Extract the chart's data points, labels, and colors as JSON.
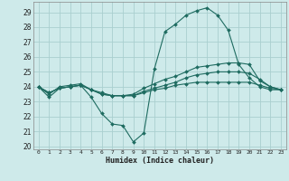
{
  "xlabel": "Humidex (Indice chaleur)",
  "x_ticks": [
    0,
    1,
    2,
    3,
    4,
    5,
    6,
    7,
    8,
    9,
    10,
    11,
    12,
    13,
    14,
    15,
    16,
    17,
    18,
    19,
    20,
    21,
    22,
    23
  ],
  "xlim": [
    -0.5,
    23.5
  ],
  "ylim": [
    19.8,
    29.7
  ],
  "y_ticks": [
    20,
    21,
    22,
    23,
    24,
    25,
    26,
    27,
    28,
    29
  ],
  "background_color": "#ceeaea",
  "grid_color": "#aacfcf",
  "line_color": "#1e6b60",
  "series1": [
    24.0,
    23.3,
    23.9,
    24.0,
    24.1,
    23.3,
    22.2,
    21.5,
    21.4,
    20.3,
    20.9,
    25.2,
    27.7,
    28.2,
    28.8,
    29.1,
    29.3,
    28.8,
    27.8,
    25.5,
    24.6,
    24.0,
    23.8,
    23.8
  ],
  "series2": [
    24.0,
    23.5,
    24.0,
    24.1,
    24.2,
    23.8,
    23.6,
    23.4,
    23.4,
    23.5,
    23.9,
    24.2,
    24.5,
    24.7,
    25.0,
    25.3,
    25.4,
    25.5,
    25.6,
    25.6,
    25.5,
    24.4,
    24.0,
    23.8
  ],
  "series3": [
    24.0,
    23.6,
    23.9,
    24.0,
    24.1,
    23.8,
    23.5,
    23.4,
    23.4,
    23.4,
    23.7,
    23.9,
    24.1,
    24.3,
    24.6,
    24.8,
    24.9,
    25.0,
    25.0,
    25.0,
    24.9,
    24.5,
    24.0,
    23.8
  ],
  "series4": [
    24.0,
    23.6,
    23.9,
    24.0,
    24.1,
    23.8,
    23.5,
    23.4,
    23.4,
    23.4,
    23.6,
    23.8,
    23.9,
    24.1,
    24.2,
    24.3,
    24.3,
    24.3,
    24.3,
    24.3,
    24.3,
    24.1,
    23.9,
    23.8
  ]
}
